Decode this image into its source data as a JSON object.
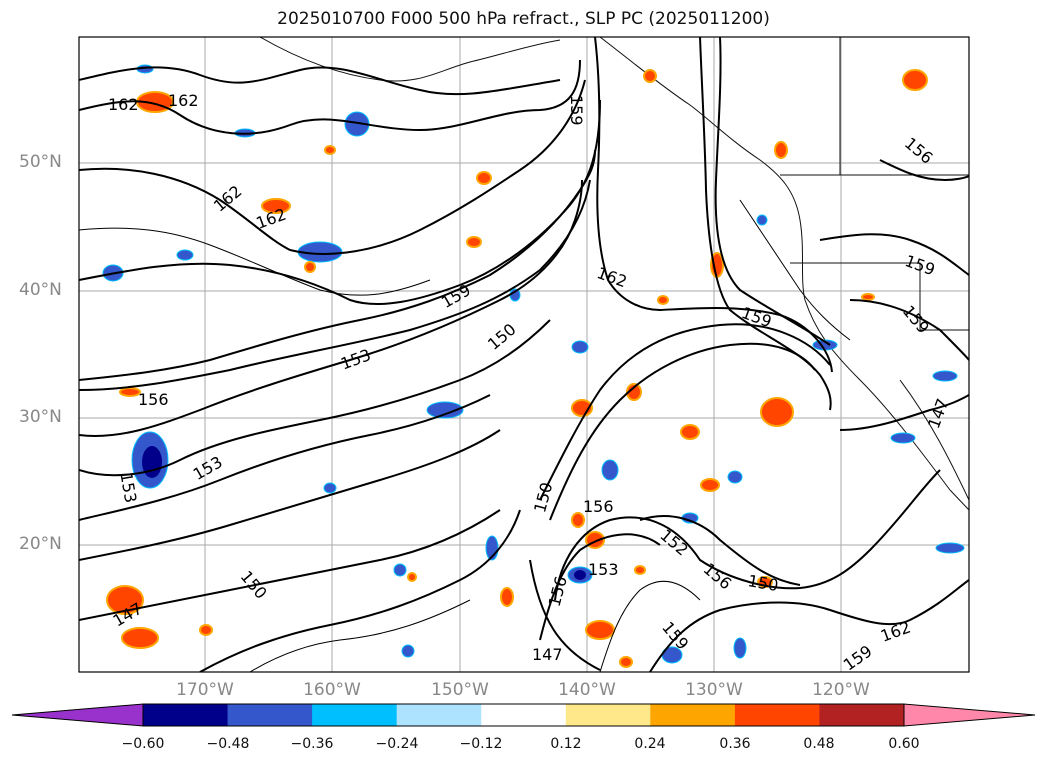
{
  "title": "2025010700 F000 500 hPa refract., SLP PC (2025011200)",
  "lat_labels": [
    "50°N",
    "40°N",
    "30°N",
    "20°N"
  ],
  "lon_labels": [
    "170°W",
    "160°W",
    "150°W",
    "140°W",
    "130°W",
    "120°W"
  ],
  "contour_labels": [
    "162",
    "162",
    "162",
    "162",
    "156",
    "153",
    "153",
    "150",
    "159",
    "159",
    "162",
    "159",
    "159",
    "156",
    "159",
    "150",
    "147",
    "153",
    "150",
    "156",
    "153",
    "156",
    "152",
    "156",
    "150",
    "159",
    "159",
    "162",
    "147",
    "147",
    "153",
    "158",
    "159",
    "156",
    "158",
    "153"
  ],
  "colorbar": {
    "ticks": [
      "−0.60",
      "−0.48",
      "−0.36",
      "−0.24",
      "−0.12",
      "0.12",
      "0.24",
      "0.36",
      "0.48",
      "0.60"
    ],
    "colors": [
      "#9932cc",
      "#00008b",
      "#3458cc",
      "#00bfff",
      "#aee3ff",
      "#ffffff",
      "#ffe88a",
      "#ffa500",
      "#ff4500",
      "#b22222",
      "#ff88aa"
    ]
  }
}
